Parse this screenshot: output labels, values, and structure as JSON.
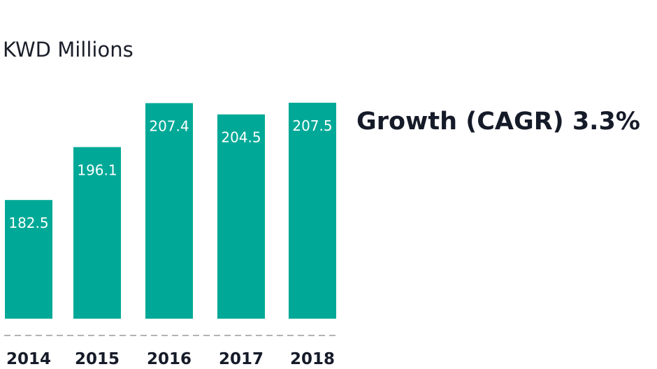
{
  "chart_data": {
    "type": "bar",
    "unit_label": "KWD Millions",
    "categories": [
      "2014",
      "2015",
      "2016",
      "2017",
      "2018"
    ],
    "values": [
      182.5,
      196.1,
      207.4,
      204.5,
      207.5
    ],
    "value_labels": [
      "182.5",
      "196.1",
      "207.4",
      "204.5",
      "207.5"
    ],
    "annotation": "Growth (CAGR) 3.3%",
    "grid": false,
    "legend": "none",
    "bar_color": "#00a997",
    "baseline_color": "#b3b3b3"
  }
}
